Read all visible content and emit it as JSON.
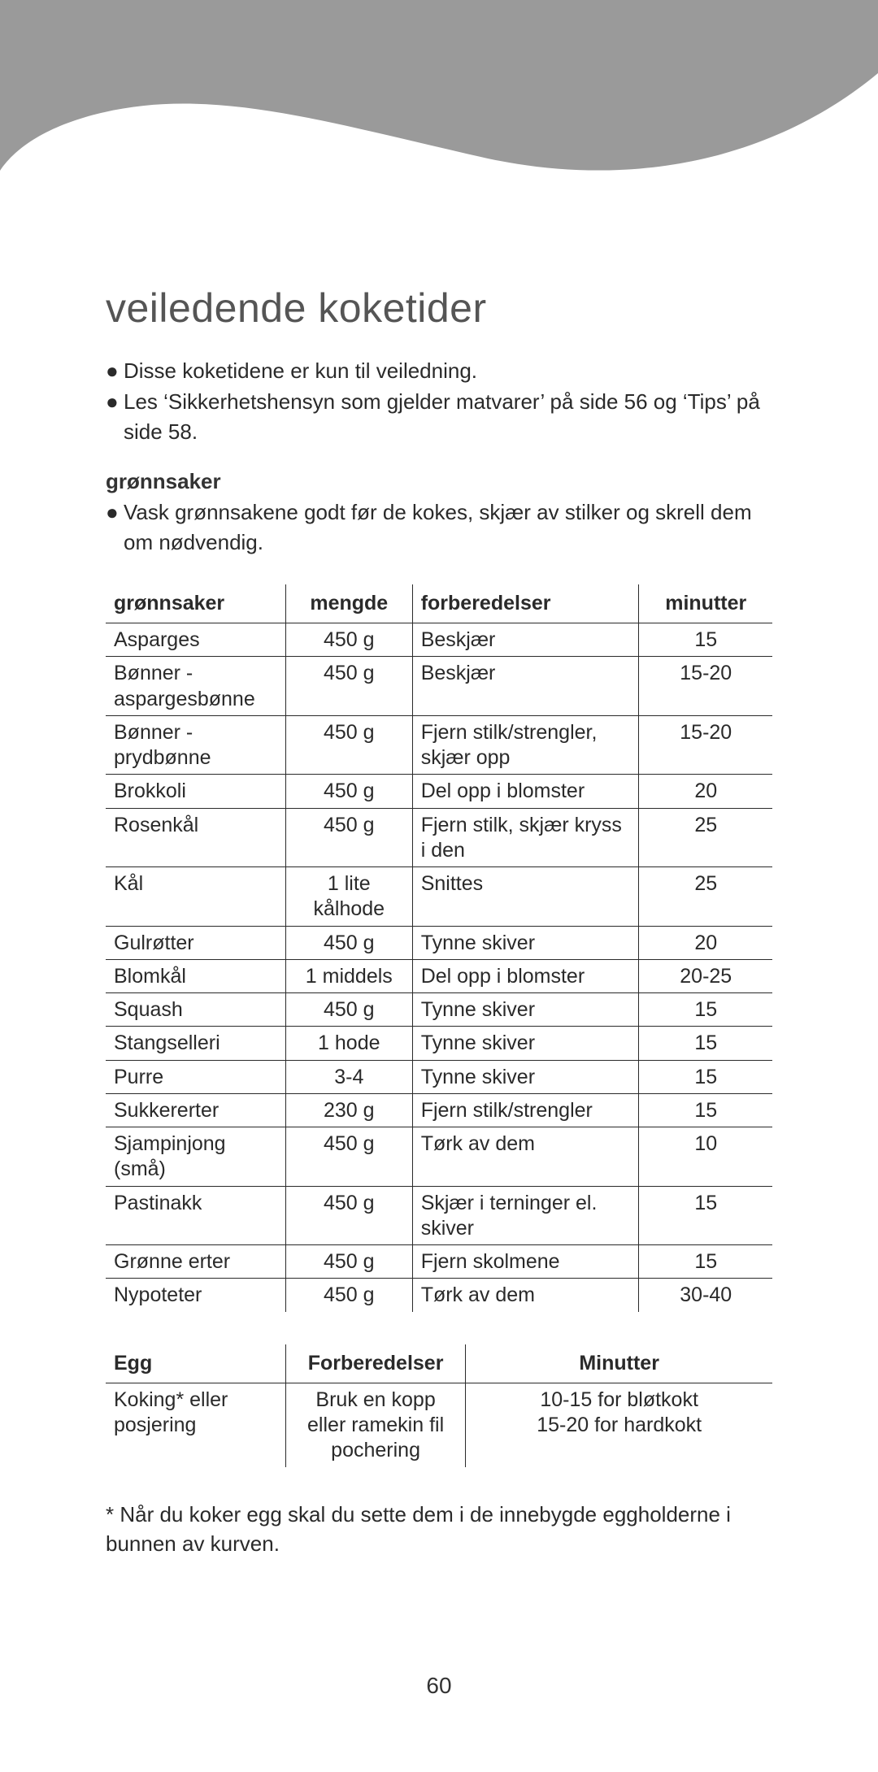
{
  "wave_color": "#9a9a9a",
  "title": "veiledende koketider",
  "bullets_top": [
    "Disse koketidene er kun til veiledning.",
    "Les ‘Sikkerhetshensyn som gjelder matvarer’ på side 56 og ‘Tips’ på side 58."
  ],
  "section_label": "grønnsaker",
  "bullets_section": [
    "Vask grønnsakene godt før de kokes, skjær av stilker og skrell dem om nødvendig."
  ],
  "veg_table": {
    "headers": [
      "grønnsaker",
      "mengde",
      "forberedelser",
      "minutter"
    ],
    "rows": [
      [
        "Asparges",
        "450 g",
        "Beskjær",
        "15"
      ],
      [
        "Bønner - aspargesbønne",
        "450 g",
        "Beskjær",
        "15-20"
      ],
      [
        "Bønner - prydbønne",
        "450 g",
        "Fjern stilk/strengler, skjær opp",
        "15-20"
      ],
      [
        "Brokkoli",
        "450 g",
        "Del opp i blomster",
        "20"
      ],
      [
        "Rosenkål",
        "450 g",
        "Fjern stilk, skjær kryss i den",
        "25"
      ],
      [
        "Kål",
        "1 lite kålhode",
        "Snittes",
        "25"
      ],
      [
        "Gulrøtter",
        "450 g",
        "Tynne skiver",
        "20"
      ],
      [
        "Blomkål",
        "1 middels",
        "Del opp i blomster",
        "20-25"
      ],
      [
        "Squash",
        "450 g",
        "Tynne skiver",
        "15"
      ],
      [
        "Stangselleri",
        "1 hode",
        "Tynne skiver",
        "15"
      ],
      [
        "Purre",
        "3-4",
        "Tynne skiver",
        "15"
      ],
      [
        "Sukkererter",
        "230 g",
        "Fjern stilk/strengler",
        "15"
      ],
      [
        "Sjampinjong (små)",
        "450 g",
        "Tørk av dem",
        "10"
      ],
      [
        "Pastinakk",
        "450 g",
        "Skjær i terninger el. skiver",
        "15"
      ],
      [
        "Grønne erter",
        "450 g",
        "Fjern skolmene",
        "15"
      ],
      [
        "Nypoteter",
        "450 g",
        "Tørk av dem",
        "30-40"
      ]
    ]
  },
  "egg_table": {
    "headers": [
      "Egg",
      "Forberedelser",
      "Minutter"
    ],
    "rows": [
      [
        "Koking* eller posjering",
        "Bruk en kopp eller ramekin fil pochering",
        "10-15 for bløtkokt\n15-20 for hardkokt"
      ]
    ]
  },
  "footnote": "* Når du koker egg skal du sette dem i de innebygde eggholderne i bunnen av kurven.",
  "page_number": "60"
}
